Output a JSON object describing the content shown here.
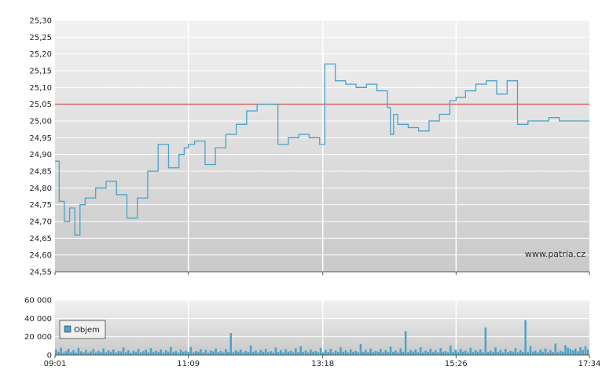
{
  "chart_data": [
    {
      "type": "line",
      "title": "",
      "xlabel": "",
      "ylabel": "",
      "x_ticks": [
        "09:01",
        "11:09",
        "13:18",
        "15:26",
        "17:34"
      ],
      "y_ticks": [
        "25,30",
        "25,25",
        "25,20",
        "25,15",
        "25,10",
        "25,05",
        "25,00",
        "24,95",
        "24,90",
        "24,85",
        "24,80",
        "24,75",
        "24,70",
        "24,65",
        "24,60",
        "24,55"
      ],
      "ylim": [
        24.55,
        25.3
      ],
      "reference_line": {
        "value": 25.05,
        "color": "#cc3333"
      },
      "watermark": "www.patria.cz",
      "series": [
        {
          "color": "#4aa3c8",
          "x": [
            "09:01",
            "09:05",
            "09:10",
            "09:15",
            "09:20",
            "09:25",
            "09:30",
            "09:40",
            "09:50",
            "10:00",
            "10:10",
            "10:20",
            "10:30",
            "10:40",
            "10:50",
            "11:00",
            "11:05",
            "11:09",
            "11:15",
            "11:25",
            "11:35",
            "11:45",
            "11:55",
            "12:05",
            "12:15",
            "12:25",
            "12:35",
            "12:45",
            "12:55",
            "13:05",
            "13:15",
            "13:20",
            "13:30",
            "13:40",
            "13:50",
            "14:00",
            "14:10",
            "14:20",
            "14:23",
            "14:26",
            "14:30",
            "14:40",
            "14:50",
            "15:00",
            "15:10",
            "15:20",
            "15:26",
            "15:35",
            "15:45",
            "15:55",
            "16:05",
            "16:15",
            "16:25",
            "16:35",
            "16:45",
            "16:55",
            "17:05",
            "17:15",
            "17:25",
            "17:34"
          ],
          "values": [
            24.88,
            24.76,
            24.7,
            24.74,
            24.66,
            24.75,
            24.77,
            24.8,
            24.82,
            24.78,
            24.71,
            24.77,
            24.85,
            24.93,
            24.86,
            24.9,
            24.92,
            24.93,
            24.94,
            24.87,
            24.92,
            24.96,
            24.99,
            25.03,
            25.05,
            25.05,
            24.93,
            24.95,
            24.96,
            24.95,
            24.93,
            25.17,
            25.12,
            25.11,
            25.1,
            25.11,
            25.09,
            25.04,
            24.96,
            25.02,
            24.99,
            24.98,
            24.97,
            25.0,
            25.02,
            25.06,
            25.07,
            25.09,
            25.11,
            25.12,
            25.08,
            25.12,
            24.99,
            25.0,
            25.0,
            25.01,
            25.0,
            25.0,
            25.0,
            25.0
          ]
        }
      ]
    },
    {
      "type": "bar",
      "title": "",
      "legend": [
        "Objem"
      ],
      "x_ticks": [
        "09:01",
        "11:09",
        "13:18",
        "15:26",
        "17:34"
      ],
      "y_ticks": [
        "60 000",
        "40 000",
        "20 000",
        "0"
      ],
      "ylim": [
        0,
        60000
      ],
      "series": [
        {
          "name": "Objem",
          "color": "#4aa3c8",
          "values": [
            6000,
            3500,
            8000,
            2500,
            4200,
            6800,
            3100,
            5300,
            2600,
            7800,
            4000,
            3000,
            5600,
            2400,
            3900,
            6500,
            2800,
            4500,
            3300,
            7200,
            2900,
            5000,
            3600,
            6100,
            2700,
            4300,
            3800,
            8200,
            3100,
            5400,
            2600,
            4800,
            3500,
            6700,
            3000,
            4100,
            5800,
            2900,
            7600,
            3400,
            4600,
            3200,
            6200,
            2800,
            5100,
            3700,
            9000,
            3100,
            4400,
            2700,
            5900,
            3600,
            4700,
            3300,
            8800,
            2900,
            4200,
            3500,
            6300,
            3000,
            5500,
            2600,
            4900,
            3800,
            7100,
            3200,
            4500,
            2800,
            6600,
            3400,
            24000,
            3100,
            5200,
            3700,
            6000,
            2900,
            4400,
            3300,
            10500,
            3500,
            4800,
            2700,
            5700,
            3600,
            6900,
            3100,
            4100,
            2800,
            8100,
            3400,
            5300,
            3000,
            6400,
            3700,
            4600,
            2900,
            7400,
            3200,
            9600,
            3500,
            4900,
            2800,
            6100,
            3600,
            4300,
            3100,
            7800,
            2900,
            5600,
            3400,
            6800,
            3000,
            4700,
            3300,
            8400,
            3600,
            5100,
            2800,
            6300,
            3500,
            4500,
            3100,
            12000,
            3400,
            5800,
            2900,
            7000,
            3300,
            4400,
            3600,
            6600,
            3000,
            5400,
            3200,
            9200,
            3500,
            4800,
            2900,
            7300,
            3400,
            26000,
            3000,
            5500,
            3700,
            6200,
            3100,
            8600,
            2800,
            4600,
            3500,
            6900,
            3300,
            5200,
            3000,
            7700,
            3600,
            4200,
            2900,
            10200,
            3400,
            5900,
            3100,
            6400,
            3700,
            4900,
            2800,
            7900,
            3300,
            5300,
            3600,
            6100,
            3000,
            30000,
            3400,
            4700,
            3200,
            8300,
            3500,
            5600,
            2900,
            6700,
            3300,
            4500,
            3700,
            7400,
            3000,
            5100,
            3400,
            38000,
            3200,
            9800,
            3600,
            4800,
            3000,
            6000,
            3500,
            7200,
            2900,
            5400,
            3300,
            12500,
            3100,
            4600,
            3700,
            10800,
            8000,
            6500,
            5000,
            7000,
            4000,
            8500,
            5500,
            9500,
            6000
          ]
        }
      ]
    }
  ]
}
